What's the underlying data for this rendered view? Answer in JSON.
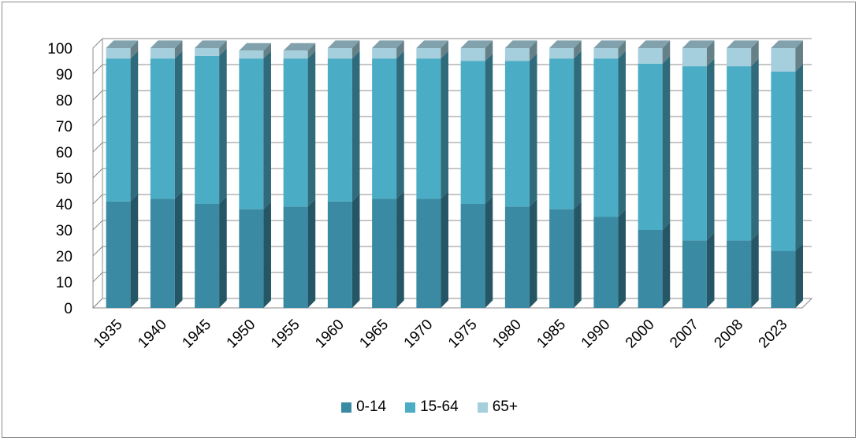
{
  "chart_data": {
    "type": "bar",
    "stacked": true,
    "style": "3d",
    "categories": [
      "1935",
      "1940",
      "1945",
      "1950",
      "1955",
      "1960",
      "1965",
      "1970",
      "1975",
      "1980",
      "1985",
      "1990",
      "2000",
      "2007",
      "2008",
      "2023"
    ],
    "series": [
      {
        "name": "0-14",
        "color": "#3b8aa3",
        "values": [
          41,
          42,
          40,
          38,
          39,
          41,
          42,
          42,
          40,
          39,
          38,
          35,
          30,
          26,
          26,
          22
        ]
      },
      {
        "name": "15-64",
        "color": "#4bacc6",
        "values": [
          55,
          54,
          57,
          58,
          57,
          55,
          54,
          54,
          55,
          56,
          58,
          61,
          64,
          67,
          67,
          69
        ]
      },
      {
        "name": "65+",
        "color": "#a5cfdc",
        "values": [
          4,
          4,
          3,
          3,
          3,
          4,
          4,
          4,
          5,
          5,
          4,
          4,
          6,
          7,
          7,
          9
        ]
      }
    ],
    "ylim": [
      0,
      100
    ],
    "yticks": [
      "0",
      "10",
      "20",
      "30",
      "40",
      "50",
      "60",
      "70",
      "80",
      "90",
      "100"
    ],
    "grid": true,
    "legend_position": "bottom",
    "title": "",
    "xlabel": "",
    "ylabel": ""
  }
}
